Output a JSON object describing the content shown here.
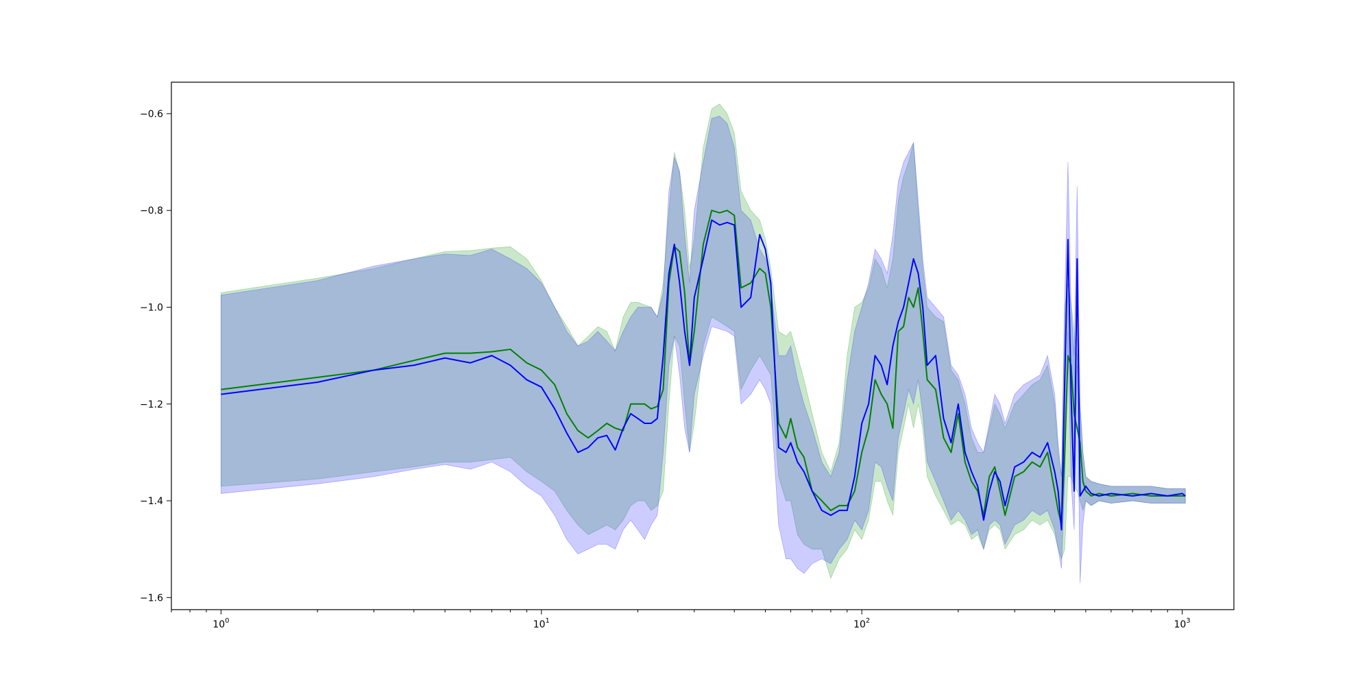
{
  "chart_data": {
    "type": "line",
    "title": "",
    "xlabel": "",
    "ylabel": "",
    "x_scale": "log",
    "xlim": [
      0.7,
      1450
    ],
    "ylim": [
      -1.625,
      -0.535
    ],
    "grid": false,
    "legend": null,
    "x_ticks": [
      {
        "value": 1,
        "base": "10",
        "exp": "0"
      },
      {
        "value": 10,
        "base": "10",
        "exp": "1"
      },
      {
        "value": 100,
        "base": "10",
        "exp": "2"
      },
      {
        "value": 1000,
        "base": "10",
        "exp": "3"
      }
    ],
    "y_ticks": [
      {
        "value": -0.6,
        "label": "−0.6"
      },
      {
        "value": -0.8,
        "label": "−0.8"
      },
      {
        "value": -1.0,
        "label": "−1.0"
      },
      {
        "value": -1.2,
        "label": "−1.2"
      },
      {
        "value": -1.4,
        "label": "−1.4"
      },
      {
        "value": -1.6,
        "label": "−1.6"
      }
    ],
    "series": [
      {
        "color": "#008000",
        "band_color": "#2ca02c",
        "x": [
          1,
          2,
          3,
          4,
          5,
          6,
          7,
          8,
          9,
          10,
          11,
          12,
          13,
          14,
          15,
          16,
          17,
          18,
          19,
          20,
          21,
          22,
          23,
          24,
          25,
          26,
          27,
          28,
          29,
          30,
          32,
          34,
          36,
          38,
          40,
          42,
          45,
          48,
          50,
          52,
          55,
          58,
          60,
          63,
          66,
          70,
          75,
          80,
          85,
          90,
          95,
          100,
          105,
          110,
          115,
          120,
          125,
          130,
          135,
          140,
          145,
          150,
          155,
          160,
          170,
          180,
          190,
          200,
          210,
          220,
          230,
          240,
          250,
          260,
          270,
          280,
          300,
          320,
          340,
          360,
          380,
          400,
          410,
          420,
          430,
          440,
          450,
          460,
          470,
          480,
          490,
          500,
          520,
          550,
          600,
          700,
          800,
          900,
          1000,
          1023
        ],
        "y": [
          -1.17,
          -1.145,
          -1.13,
          -1.11,
          -1.095,
          -1.095,
          -1.092,
          -1.087,
          -1.115,
          -1.13,
          -1.16,
          -1.22,
          -1.255,
          -1.27,
          -1.255,
          -1.24,
          -1.25,
          -1.255,
          -1.2,
          -1.2,
          -1.2,
          -1.21,
          -1.205,
          -1.17,
          -0.95,
          -0.875,
          -0.885,
          -0.97,
          -1.12,
          -1.05,
          -0.87,
          -0.8,
          -0.805,
          -0.8,
          -0.81,
          -0.96,
          -0.95,
          -0.92,
          -0.93,
          -1.0,
          -1.24,
          -1.27,
          -1.23,
          -1.29,
          -1.31,
          -1.38,
          -1.4,
          -1.42,
          -1.41,
          -1.41,
          -1.38,
          -1.3,
          -1.25,
          -1.15,
          -1.18,
          -1.2,
          -1.25,
          -1.05,
          -1.04,
          -0.98,
          -1.0,
          -0.96,
          -1.05,
          -1.15,
          -1.17,
          -1.27,
          -1.3,
          -1.22,
          -1.32,
          -1.36,
          -1.38,
          -1.43,
          -1.35,
          -1.33,
          -1.38,
          -1.43,
          -1.35,
          -1.34,
          -1.32,
          -1.33,
          -1.3,
          -1.38,
          -1.42,
          -1.45,
          -1.3,
          -1.1,
          -1.12,
          -1.22,
          -1.25,
          -1.28,
          -1.36,
          -1.38,
          -1.39,
          -1.385,
          -1.39,
          -1.385,
          -1.39,
          -1.39,
          -1.39,
          -1.39
        ],
        "upper": [
          -0.97,
          -0.94,
          -0.92,
          -0.9,
          -0.885,
          -0.883,
          -0.878,
          -0.875,
          -0.9,
          -0.945,
          -1.0,
          -1.04,
          -1.08,
          -1.06,
          -1.04,
          -1.05,
          -1.09,
          -1.02,
          -0.99,
          -0.99,
          -0.995,
          -1.0,
          -1.02,
          -0.95,
          -0.8,
          -0.68,
          -0.72,
          -0.8,
          -0.92,
          -0.86,
          -0.67,
          -0.59,
          -0.58,
          -0.6,
          -0.64,
          -0.76,
          -0.8,
          -0.82,
          -0.86,
          -0.92,
          -1.05,
          -1.06,
          -1.05,
          -1.1,
          -1.15,
          -1.22,
          -1.3,
          -1.34,
          -1.28,
          -1.1,
          -1.0,
          -0.99,
          -0.96,
          -0.9,
          -0.92,
          -0.96,
          -0.9,
          -0.78,
          -0.73,
          -0.7,
          -0.66,
          -0.8,
          -0.92,
          -1.0,
          -1.02,
          -1.03,
          -1.13,
          -1.15,
          -1.2,
          -1.27,
          -1.3,
          -1.3,
          -1.25,
          -1.2,
          -1.22,
          -1.25,
          -1.2,
          -1.18,
          -1.16,
          -1.15,
          -1.12,
          -1.2,
          -1.3,
          -1.35,
          -1.0,
          -0.95,
          -0.99,
          -1.05,
          -1.1,
          -1.2,
          -1.3,
          -1.35,
          -1.36,
          -1.365,
          -1.37,
          -1.37,
          -1.37,
          -1.375,
          -1.375,
          -1.375
        ],
        "lower": [
          -1.37,
          -1.355,
          -1.34,
          -1.33,
          -1.32,
          -1.32,
          -1.315,
          -1.31,
          -1.34,
          -1.36,
          -1.38,
          -1.42,
          -1.45,
          -1.47,
          -1.46,
          -1.45,
          -1.46,
          -1.44,
          -1.41,
          -1.4,
          -1.4,
          -1.42,
          -1.41,
          -1.38,
          -1.2,
          -1.06,
          -1.08,
          -1.2,
          -1.3,
          -1.24,
          -1.08,
          -1.02,
          -1.03,
          -1.04,
          -1.05,
          -1.17,
          -1.13,
          -1.1,
          -1.12,
          -1.14,
          -1.35,
          -1.4,
          -1.4,
          -1.47,
          -1.49,
          -1.5,
          -1.5,
          -1.56,
          -1.52,
          -1.5,
          -1.46,
          -1.48,
          -1.44,
          -1.36,
          -1.36,
          -1.4,
          -1.43,
          -1.3,
          -1.25,
          -1.2,
          -1.25,
          -1.2,
          -1.25,
          -1.35,
          -1.39,
          -1.42,
          -1.45,
          -1.44,
          -1.45,
          -1.48,
          -1.47,
          -1.5,
          -1.46,
          -1.45,
          -1.46,
          -1.5,
          -1.47,
          -1.46,
          -1.44,
          -1.45,
          -1.44,
          -1.47,
          -1.5,
          -1.52,
          -1.5,
          -1.35,
          -1.35,
          -1.37,
          -1.38,
          -1.4,
          -1.42,
          -1.4,
          -1.41,
          -1.4,
          -1.405,
          -1.4,
          -1.405,
          -1.405,
          -1.405,
          -1.405
        ]
      },
      {
        "color": "#0000ff",
        "band_color": "#3333ff",
        "x": [
          1,
          2,
          3,
          4,
          5,
          6,
          7,
          8,
          9,
          10,
          11,
          12,
          13,
          14,
          15,
          16,
          17,
          18,
          19,
          20,
          21,
          22,
          23,
          24,
          25,
          26,
          27,
          28,
          29,
          30,
          32,
          34,
          36,
          38,
          40,
          42,
          45,
          48,
          50,
          52,
          55,
          58,
          60,
          63,
          66,
          70,
          75,
          80,
          85,
          90,
          95,
          100,
          105,
          110,
          115,
          120,
          125,
          130,
          135,
          140,
          145,
          150,
          155,
          160,
          170,
          180,
          190,
          200,
          210,
          220,
          230,
          240,
          250,
          260,
          270,
          280,
          300,
          320,
          340,
          360,
          380,
          400,
          410,
          420,
          430,
          440,
          450,
          460,
          470,
          480,
          490,
          500,
          520,
          550,
          600,
          700,
          800,
          900,
          1000,
          1023
        ],
        "y": [
          -1.18,
          -1.155,
          -1.13,
          -1.12,
          -1.105,
          -1.115,
          -1.1,
          -1.12,
          -1.15,
          -1.165,
          -1.21,
          -1.26,
          -1.3,
          -1.29,
          -1.27,
          -1.265,
          -1.295,
          -1.25,
          -1.22,
          -1.23,
          -1.24,
          -1.24,
          -1.23,
          -1.1,
          -0.93,
          -0.87,
          -0.95,
          -1.05,
          -1.12,
          -0.98,
          -0.9,
          -0.82,
          -0.83,
          -0.825,
          -0.83,
          -1.0,
          -0.98,
          -0.85,
          -0.88,
          -0.95,
          -1.29,
          -1.3,
          -1.28,
          -1.32,
          -1.34,
          -1.38,
          -1.42,
          -1.43,
          -1.42,
          -1.42,
          -1.35,
          -1.24,
          -1.2,
          -1.1,
          -1.12,
          -1.16,
          -1.08,
          -1.03,
          -1.0,
          -0.95,
          -0.9,
          -0.93,
          -1.0,
          -1.12,
          -1.1,
          -1.23,
          -1.28,
          -1.2,
          -1.3,
          -1.34,
          -1.37,
          -1.44,
          -1.38,
          -1.34,
          -1.36,
          -1.41,
          -1.33,
          -1.32,
          -1.3,
          -1.31,
          -1.28,
          -1.34,
          -1.38,
          -1.46,
          -1.15,
          -0.86,
          -1.18,
          -1.38,
          -0.9,
          -1.39,
          -1.38,
          -1.37,
          -1.385,
          -1.39,
          -1.385,
          -1.39,
          -1.385,
          -1.39,
          -1.385,
          -1.39
        ],
        "upper": [
          -0.975,
          -0.945,
          -0.915,
          -0.9,
          -0.89,
          -0.893,
          -0.88,
          -0.9,
          -0.92,
          -0.95,
          -1.0,
          -1.05,
          -1.08,
          -1.07,
          -1.05,
          -1.07,
          -1.09,
          -1.05,
          -1.02,
          -1.0,
          -1.0,
          -1.0,
          -1.02,
          -0.97,
          -0.76,
          -0.69,
          -0.72,
          -0.85,
          -0.95,
          -0.8,
          -0.7,
          -0.61,
          -0.605,
          -0.62,
          -0.67,
          -0.8,
          -0.82,
          -0.88,
          -0.9,
          -0.96,
          -1.1,
          -1.1,
          -1.08,
          -1.15,
          -1.2,
          -1.25,
          -1.32,
          -1.35,
          -1.3,
          -1.15,
          -1.05,
          -1.0,
          -0.95,
          -0.88,
          -0.9,
          -0.93,
          -0.85,
          -0.74,
          -0.7,
          -0.68,
          -0.66,
          -0.78,
          -0.9,
          -0.98,
          -1.0,
          -1.02,
          -1.12,
          -1.14,
          -1.18,
          -1.25,
          -1.28,
          -1.3,
          -1.24,
          -1.18,
          -1.2,
          -1.24,
          -1.18,
          -1.16,
          -1.15,
          -1.14,
          -1.1,
          -1.18,
          -1.28,
          -1.35,
          -0.98,
          -0.7,
          -1.0,
          -1.1,
          -0.75,
          -1.2,
          -1.3,
          -1.35,
          -1.36,
          -1.365,
          -1.37,
          -1.37,
          -1.37,
          -1.375,
          -1.375,
          -1.375
        ],
        "lower": [
          -1.385,
          -1.365,
          -1.35,
          -1.335,
          -1.325,
          -1.335,
          -1.32,
          -1.34,
          -1.37,
          -1.39,
          -1.43,
          -1.48,
          -1.51,
          -1.5,
          -1.49,
          -1.49,
          -1.5,
          -1.46,
          -1.44,
          -1.46,
          -1.48,
          -1.45,
          -1.43,
          -1.3,
          -1.12,
          -1.06,
          -1.14,
          -1.25,
          -1.3,
          -1.18,
          -1.1,
          -1.04,
          -1.045,
          -1.05,
          -1.06,
          -1.2,
          -1.18,
          -1.15,
          -1.17,
          -1.2,
          -1.45,
          -1.52,
          -1.52,
          -1.54,
          -1.55,
          -1.53,
          -1.52,
          -1.53,
          -1.5,
          -1.48,
          -1.44,
          -1.46,
          -1.42,
          -1.32,
          -1.33,
          -1.37,
          -1.4,
          -1.27,
          -1.22,
          -1.17,
          -1.2,
          -1.15,
          -1.22,
          -1.32,
          -1.36,
          -1.4,
          -1.44,
          -1.42,
          -1.44,
          -1.47,
          -1.46,
          -1.5,
          -1.45,
          -1.44,
          -1.45,
          -1.49,
          -1.45,
          -1.44,
          -1.42,
          -1.43,
          -1.42,
          -1.46,
          -1.5,
          -1.54,
          -1.35,
          -1.05,
          -1.36,
          -1.46,
          -1.12,
          -1.57,
          -1.45,
          -1.4,
          -1.41,
          -1.4,
          -1.405,
          -1.4,
          -1.405,
          -1.405,
          -1.405,
          -1.405
        ]
      }
    ]
  }
}
